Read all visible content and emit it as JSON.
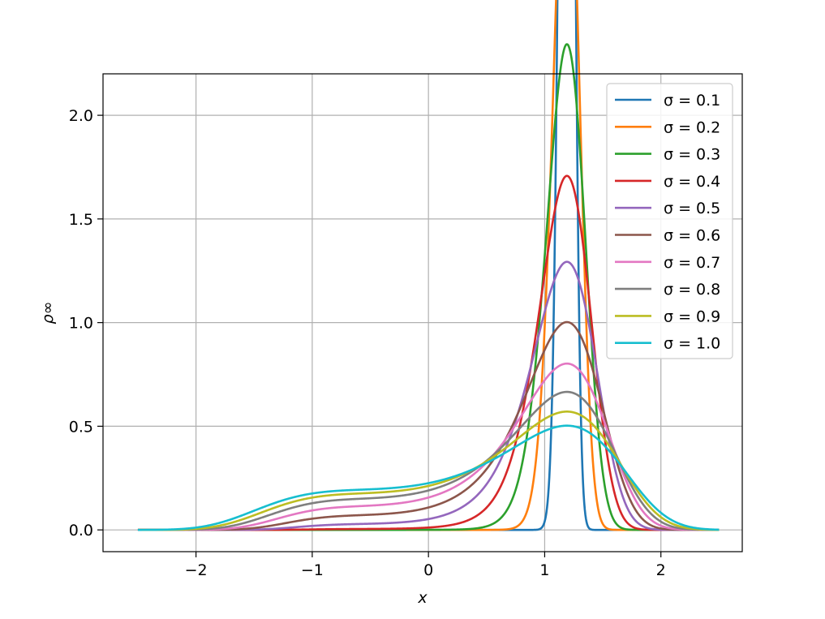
{
  "chart_data": {
    "type": "line",
    "xlabel": "x",
    "ylabel": "ρ∞",
    "xlim": [
      -2.8,
      2.7
    ],
    "ylim": [
      -0.105,
      2.2
    ],
    "xticks": [
      -2,
      -1,
      0,
      1,
      2
    ],
    "xtick_labels": [
      "−2",
      "−1",
      "0",
      "1",
      "2"
    ],
    "yticks": [
      0.0,
      0.5,
      1.0,
      1.5,
      2.0
    ],
    "ytick_labels": [
      "0.0",
      "0.5",
      "1.0",
      "1.5",
      "2.0"
    ],
    "grid": true,
    "legend_position": "upper-right",
    "x_range": [
      -2.5,
      2.5
    ],
    "series": [
      {
        "name": "σ = 0.1",
        "sigma": 0.1,
        "color": "#1f77b4"
      },
      {
        "name": "σ = 0.2",
        "sigma": 0.2,
        "color": "#ff7f0e"
      },
      {
        "name": "σ = 0.3",
        "sigma": 0.3,
        "color": "#2ca02c"
      },
      {
        "name": "σ = 0.4",
        "sigma": 0.4,
        "color": "#d62728"
      },
      {
        "name": "σ = 0.5",
        "sigma": 0.5,
        "color": "#9467bd"
      },
      {
        "name": "σ = 0.6",
        "sigma": 0.6,
        "color": "#8c564b"
      },
      {
        "name": "σ = 0.7",
        "sigma": 0.7,
        "color": "#e377c2"
      },
      {
        "name": "σ = 0.8",
        "sigma": 0.8,
        "color": "#7f7f7f"
      },
      {
        "name": "σ = 0.9",
        "sigma": 0.9,
        "color": "#bcbd22"
      },
      {
        "name": "σ = 1.0",
        "sigma": 1.0,
        "color": "#17becf"
      }
    ]
  }
}
